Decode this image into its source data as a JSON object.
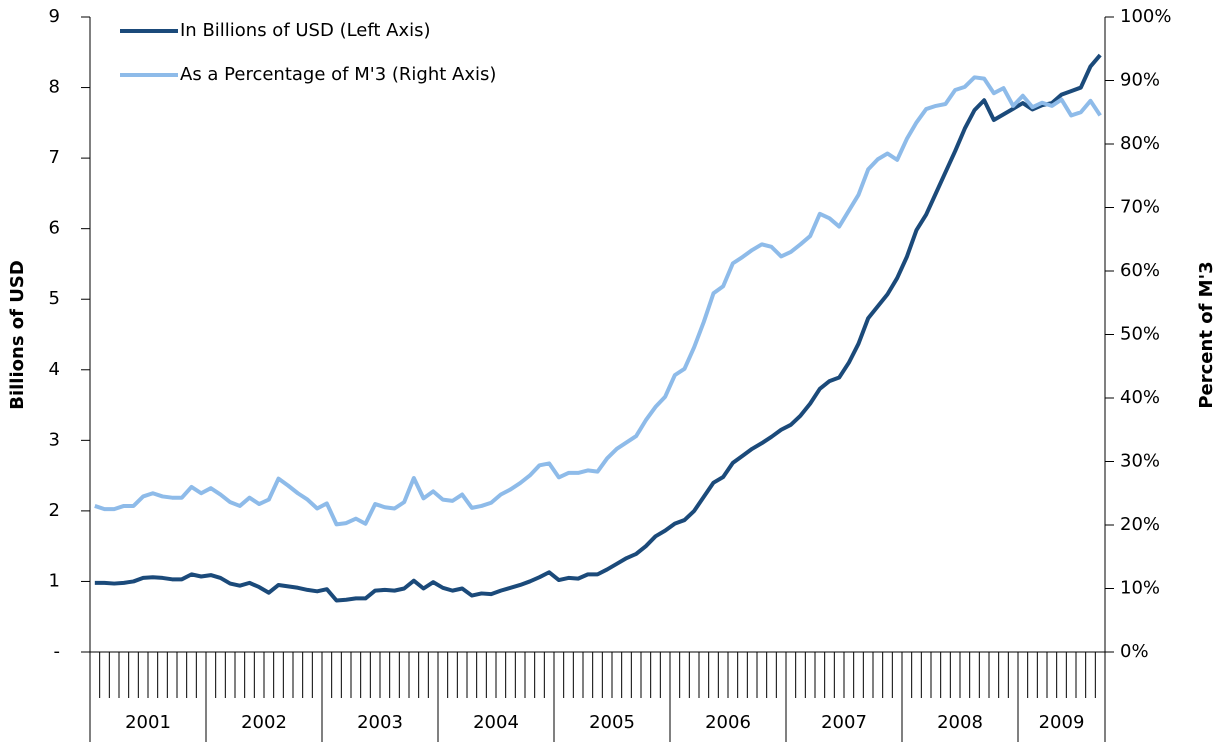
{
  "chart_data": {
    "type": "line",
    "y_title": "Billions of USD",
    "y2_title": "Percent of M'3",
    "x_groups": [
      "2001",
      "2002",
      "2003",
      "2004",
      "2005",
      "2006",
      "2007",
      "2008",
      "2009"
    ],
    "categories": [
      null,
      null,
      null,
      null,
      null,
      null,
      null,
      null,
      null,
      null,
      null,
      null,
      null,
      null,
      null,
      null,
      null,
      null,
      null,
      null,
      null,
      null,
      null,
      null,
      null,
      null,
      null,
      null,
      null,
      null,
      null,
      null,
      null,
      null,
      null,
      null,
      null,
      null,
      null,
      null,
      null,
      null,
      null,
      null,
      null,
      null,
      null,
      null,
      null,
      null,
      null,
      null,
      null,
      null,
      null,
      null,
      null,
      null,
      null,
      null,
      null,
      null,
      null,
      null,
      null,
      null,
      null,
      null,
      null,
      null,
      null,
      null,
      null,
      null,
      null,
      null,
      null,
      null,
      null,
      null,
      null,
      null,
      null,
      null,
      null,
      null,
      null,
      null,
      null,
      null,
      null,
      null,
      null,
      null,
      null,
      null,
      null,
      null,
      null,
      null,
      null,
      null,
      null,
      null,
      null
    ],
    "series": [
      {
        "name": "In Billions of USD (Left Axis)",
        "color": "#1b4a7a",
        "axis": "y",
        "values": [
          0.98,
          0.98,
          0.97,
          0.98,
          1.0,
          1.05,
          1.06,
          1.05,
          1.03,
          1.03,
          1.1,
          1.07,
          1.09,
          1.05,
          0.97,
          0.94,
          0.98,
          0.92,
          0.84,
          0.95,
          0.93,
          0.91,
          0.88,
          0.86,
          0.89,
          0.73,
          0.74,
          0.76,
          0.76,
          0.87,
          0.88,
          0.87,
          0.9,
          1.01,
          0.9,
          0.99,
          0.91,
          0.87,
          0.9,
          0.8,
          0.83,
          0.82,
          0.87,
          0.91,
          0.95,
          1.0,
          1.06,
          1.13,
          1.02,
          1.05,
          1.04,
          1.1,
          1.1,
          1.17,
          1.25,
          1.33,
          1.39,
          1.5,
          1.64,
          1.72,
          1.82,
          1.87,
          2.0,
          2.2,
          2.4,
          2.48,
          2.68,
          2.78,
          2.88,
          2.96,
          3.05,
          3.15,
          3.22,
          3.35,
          3.52,
          3.73,
          3.84,
          3.89,
          4.1,
          4.37,
          4.73,
          4.9,
          5.07,
          5.3,
          5.6,
          5.98,
          6.2,
          6.5,
          6.8,
          7.1,
          7.42,
          7.68,
          7.82,
          7.54,
          7.62,
          7.7,
          7.78,
          7.69,
          7.75,
          7.78,
          7.9,
          7.95,
          8.0,
          8.3,
          8.46
        ]
      },
      {
        "name": "As a Percentage of M'3 (Right Axis)",
        "color": "#8ebbe9",
        "axis": "y2",
        "values": [
          23,
          22.5,
          22.5,
          23,
          23,
          24.5,
          25,
          24.5,
          24.3,
          24.3,
          26,
          25,
          25.8,
          24.8,
          23.6,
          23,
          24.3,
          23.3,
          24,
          27.3,
          26.2,
          25,
          24,
          22.6,
          23.4,
          20.1,
          20.3,
          21,
          20.2,
          23.3,
          22.8,
          22.6,
          23.6,
          27.4,
          24.2,
          25.3,
          24,
          23.8,
          24.8,
          22.7,
          23,
          23.5,
          24.8,
          25.6,
          26.6,
          27.8,
          29.4,
          29.7,
          27.5,
          28.2,
          28.2,
          28.6,
          28.4,
          30.5,
          32,
          33,
          34,
          36.5,
          38.6,
          40.2,
          43.6,
          44.6,
          48,
          52,
          56.5,
          57.6,
          61.2,
          62.2,
          63.3,
          64.2,
          63.8,
          62.3,
          63,
          64.2,
          65.5,
          69,
          68.3,
          67,
          69.5,
          72,
          76,
          77.6,
          78.5,
          77.5,
          80.8,
          83.4,
          85.5,
          86,
          86.3,
          88.5,
          89,
          90.5,
          90.3,
          88,
          88.8,
          86,
          87.6,
          85.8,
          86.5,
          86,
          87,
          84.5,
          85,
          86.8,
          84.5
        ]
      }
    ],
    "ylim": [
      0,
      9
    ],
    "yticks": [
      {
        "value": 0,
        "label": "-"
      },
      1,
      2,
      3,
      4,
      5,
      6,
      7,
      8,
      9
    ],
    "y2lim": [
      0,
      100
    ],
    "y2ticks": [
      {
        "value": 0,
        "label": "0%"
      },
      {
        "value": 10,
        "label": "10%"
      },
      {
        "value": 20,
        "label": "20%"
      },
      {
        "value": 30,
        "label": "30%"
      },
      {
        "value": 40,
        "label": "40%"
      },
      {
        "value": 50,
        "label": "50%"
      },
      {
        "value": 60,
        "label": "60%"
      },
      {
        "value": 70,
        "label": "70%"
      },
      {
        "value": 80,
        "label": "80%"
      },
      {
        "value": 90,
        "label": "90%"
      },
      {
        "value": 100,
        "label": "100%"
      }
    ],
    "legend": "top-left",
    "grid": false
  }
}
